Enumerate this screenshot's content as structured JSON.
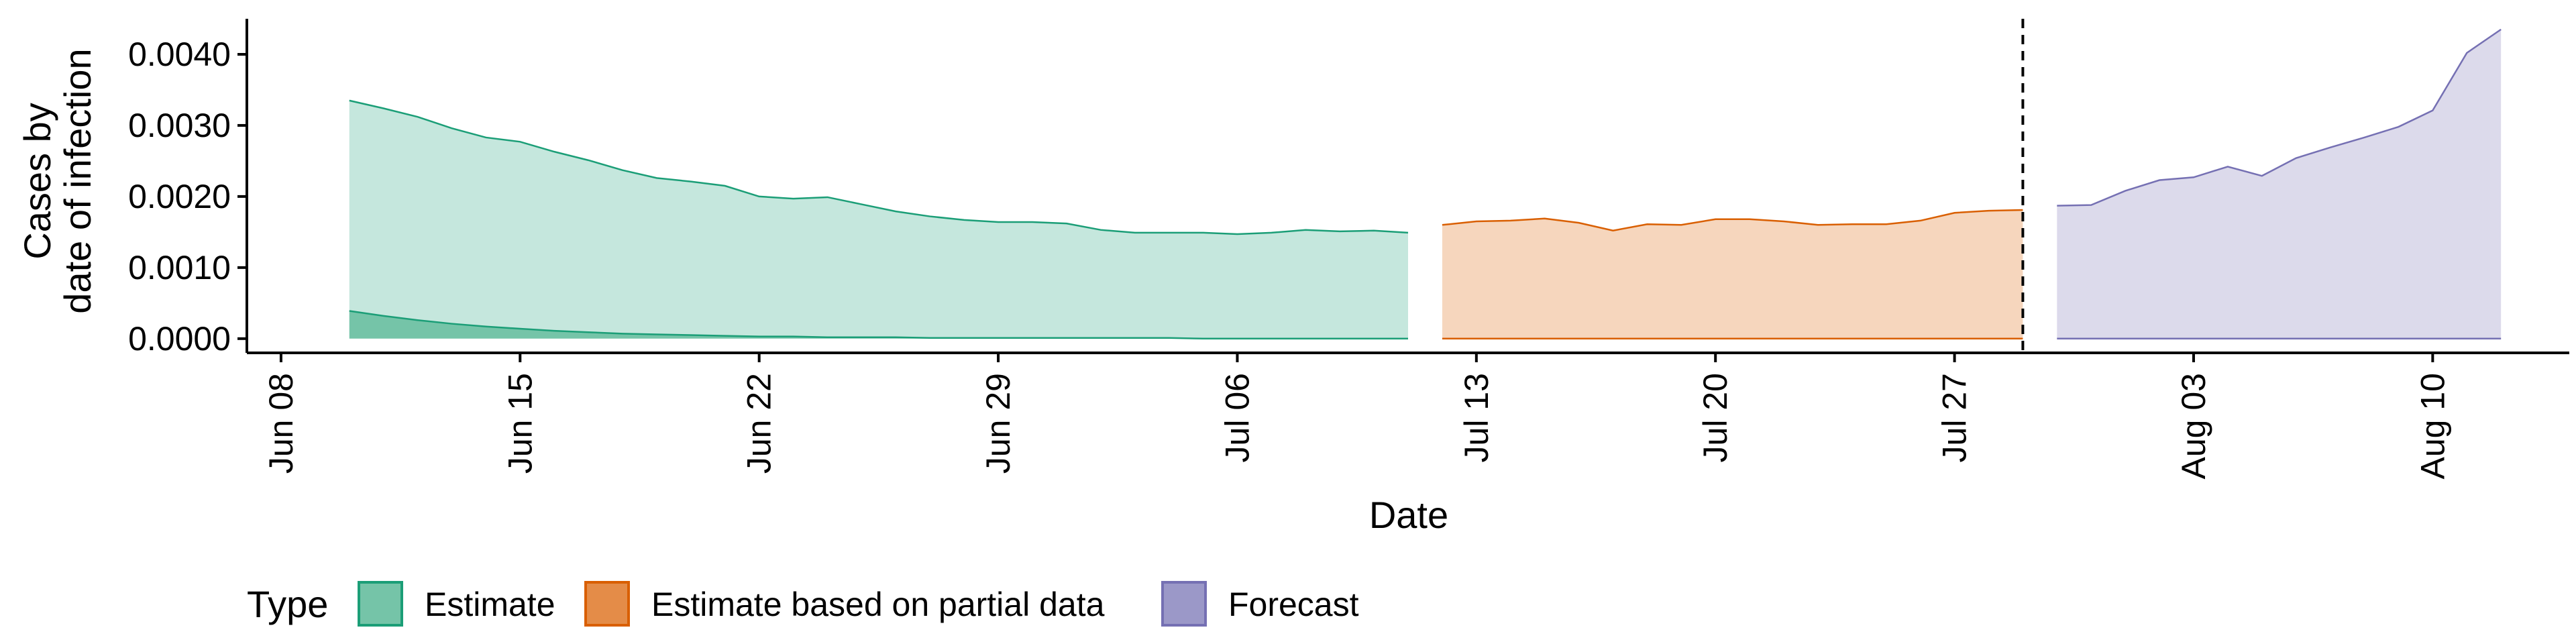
{
  "chart_data": {
    "type": "area",
    "title": "",
    "xlabel": "Date",
    "ylabel": [
      "Cases by",
      "date of infection"
    ],
    "x_scale": "date",
    "xlim": [
      "2020-06-07",
      "2020-08-14"
    ],
    "ylim": [
      -0.0002,
      0.0045
    ],
    "grid": false,
    "x_ticks": [
      {
        "date": "2020-06-08",
        "label": "Jun 08"
      },
      {
        "date": "2020-06-15",
        "label": "Jun 15"
      },
      {
        "date": "2020-06-22",
        "label": "Jun 22"
      },
      {
        "date": "2020-06-29",
        "label": "Jun 29"
      },
      {
        "date": "2020-07-06",
        "label": "Jul 06"
      },
      {
        "date": "2020-07-13",
        "label": "Jul 13"
      },
      {
        "date": "2020-07-20",
        "label": "Jul 20"
      },
      {
        "date": "2020-07-27",
        "label": "Jul 27"
      },
      {
        "date": "2020-08-03",
        "label": "Aug 03"
      },
      {
        "date": "2020-08-10",
        "label": "Aug 10"
      }
    ],
    "y_ticks": [
      {
        "value": 0.0,
        "label": "0.0000"
      },
      {
        "value": 0.001,
        "label": "0.0010"
      },
      {
        "value": 0.002,
        "label": "0.0020"
      },
      {
        "value": 0.003,
        "label": "0.0030"
      },
      {
        "value": 0.004,
        "label": "0.0040"
      }
    ],
    "vline": {
      "date": "2020-07-29",
      "style": "dashed"
    },
    "legend": {
      "title": "Type",
      "position": "bottom-left",
      "entries": [
        "Estimate",
        "Estimate based on partial data",
        "Forecast"
      ]
    },
    "series": [
      {
        "name": "Estimate",
        "fill": "#c5e7dd",
        "line": "#1b9e77",
        "inner_fill": "#75c4a8",
        "x": [
          "2020-06-10",
          "2020-06-11",
          "2020-06-12",
          "2020-06-13",
          "2020-06-14",
          "2020-06-15",
          "2020-06-16",
          "2020-06-17",
          "2020-06-18",
          "2020-06-19",
          "2020-06-20",
          "2020-06-21",
          "2020-06-22",
          "2020-06-23",
          "2020-06-24",
          "2020-06-25",
          "2020-06-26",
          "2020-06-27",
          "2020-06-28",
          "2020-06-29",
          "2020-06-30",
          "2020-07-01",
          "2020-07-02",
          "2020-07-03",
          "2020-07-04",
          "2020-07-05",
          "2020-07-06",
          "2020-07-07",
          "2020-07-08",
          "2020-07-09",
          "2020-07-10",
          "2020-07-11"
        ],
        "upper": [
          0.00335,
          0.00324,
          0.00312,
          0.00296,
          0.00283,
          0.00277,
          0.00263,
          0.00251,
          0.00237,
          0.00226,
          0.00221,
          0.00215,
          0.002,
          0.00197,
          0.00199,
          0.00189,
          0.00179,
          0.00172,
          0.00167,
          0.00164,
          0.00164,
          0.00162,
          0.00153,
          0.00149,
          0.00149,
          0.00149,
          0.00147,
          0.00149,
          0.00153,
          0.00151,
          0.00152,
          0.00149
        ],
        "lower": [
          0.00039,
          0.00032,
          0.00026,
          0.00021,
          0.00017,
          0.00014,
          0.00011,
          9e-05,
          7e-05,
          6e-05,
          5e-05,
          4e-05,
          3e-05,
          3e-05,
          2e-05,
          2e-05,
          2e-05,
          1e-05,
          1e-05,
          1e-05,
          1e-05,
          1e-05,
          1e-05,
          1e-05,
          1e-05,
          0.0,
          0.0,
          0.0,
          0.0,
          0.0,
          0.0,
          0.0
        ]
      },
      {
        "name": "Estimate based on partial data",
        "fill": "#f6d6bd",
        "line": "#d95f02",
        "x": [
          "2020-07-12",
          "2020-07-13",
          "2020-07-14",
          "2020-07-15",
          "2020-07-16",
          "2020-07-17",
          "2020-07-18",
          "2020-07-19",
          "2020-07-20",
          "2020-07-21",
          "2020-07-22",
          "2020-07-23",
          "2020-07-24",
          "2020-07-25",
          "2020-07-26",
          "2020-07-27",
          "2020-07-28",
          "2020-07-29"
        ],
        "upper": [
          0.0016,
          0.00165,
          0.00166,
          0.00169,
          0.00163,
          0.00152,
          0.00161,
          0.0016,
          0.00168,
          0.00168,
          0.00165,
          0.0016,
          0.00161,
          0.00161,
          0.00166,
          0.00177,
          0.0018,
          0.00181
        ],
        "lower": [
          0.0,
          0.0,
          0.0,
          0.0,
          0.0,
          0.0,
          0.0,
          0.0,
          0.0,
          0.0,
          0.0,
          0.0,
          0.0,
          0.0,
          0.0,
          0.0,
          0.0,
          0.0
        ]
      },
      {
        "name": "Forecast",
        "fill": "#dcdaeb",
        "line": "#7570b3",
        "x": [
          "2020-07-30",
          "2020-07-31",
          "2020-08-01",
          "2020-08-02",
          "2020-08-03",
          "2020-08-04",
          "2020-08-05",
          "2020-08-06",
          "2020-08-07",
          "2020-08-08",
          "2020-08-09",
          "2020-08-10",
          "2020-08-11",
          "2020-08-12"
        ],
        "upper": [
          0.00187,
          0.00188,
          0.00208,
          0.00223,
          0.00227,
          0.00242,
          0.00229,
          0.00254,
          0.00269,
          0.00283,
          0.00298,
          0.00321,
          0.00402,
          0.00435
        ],
        "lower": [
          0.0,
          0.0,
          0.0,
          0.0,
          0.0,
          0.0,
          0.0,
          0.0,
          0.0,
          0.0,
          0.0,
          0.0,
          0.0,
          0.0
        ]
      }
    ]
  }
}
